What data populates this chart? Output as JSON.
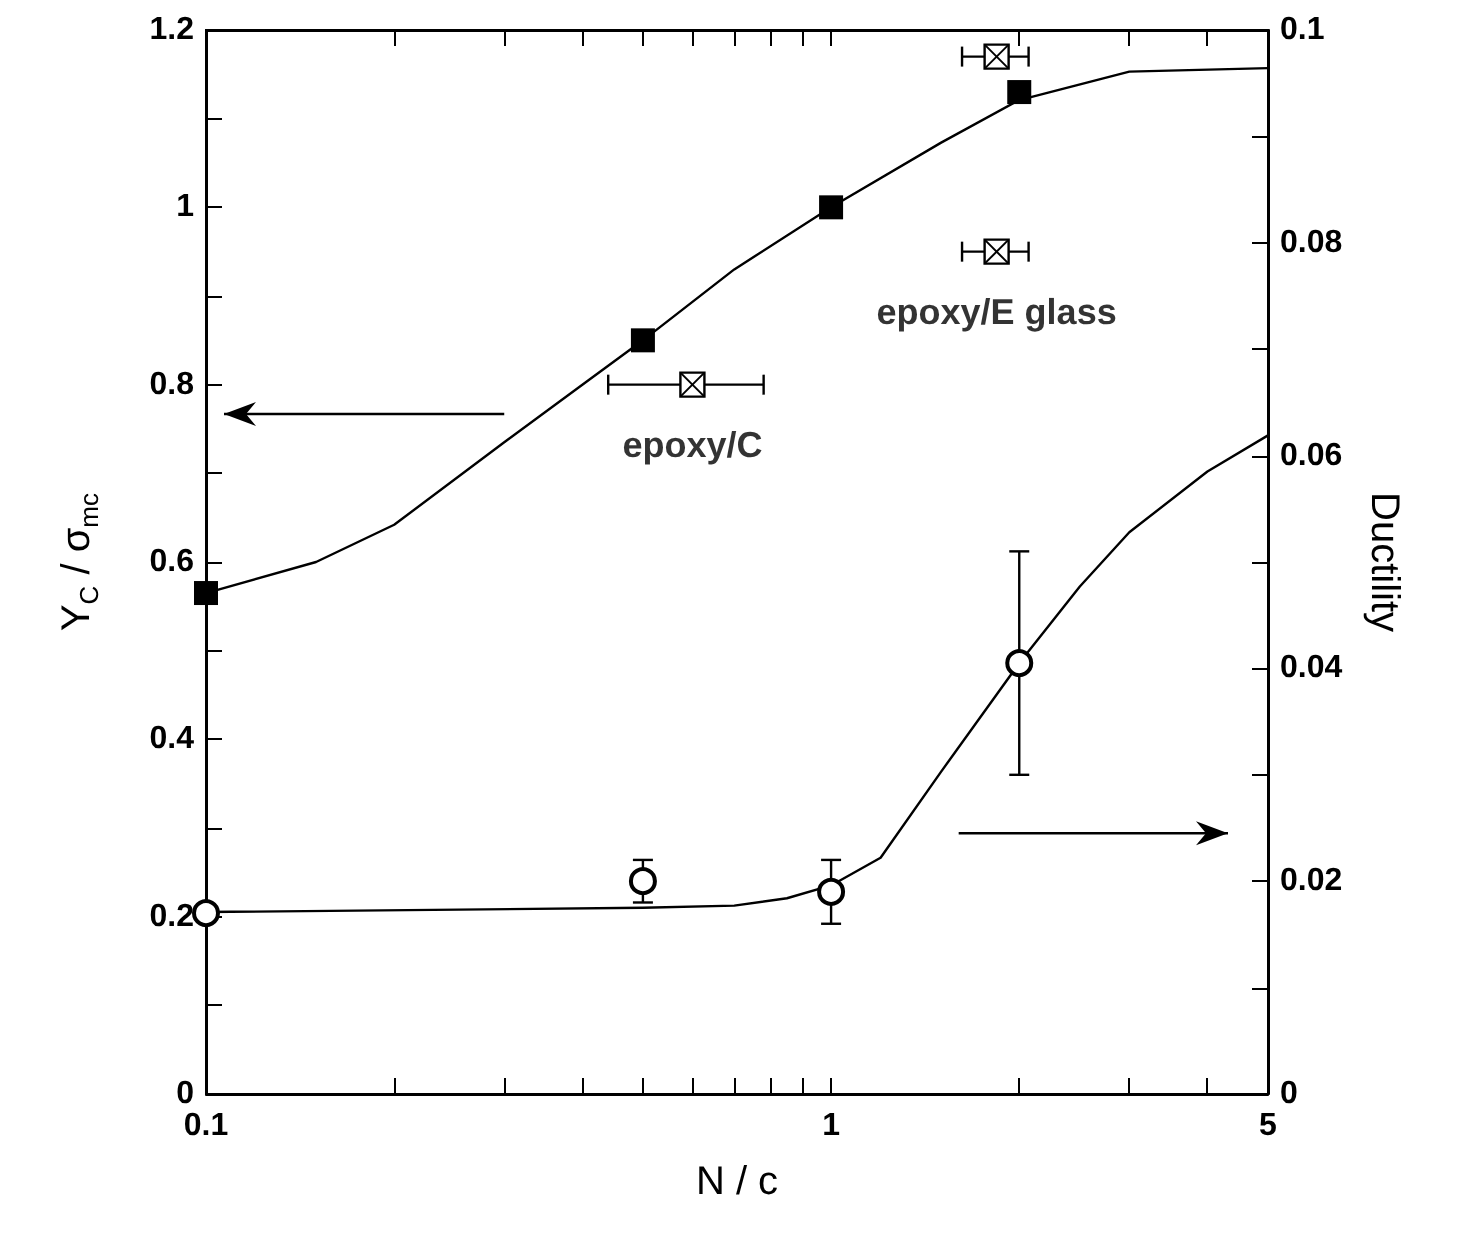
{
  "chart_data": {
    "type": "scatter",
    "xlabel": "N / c",
    "ylabel": "Y$_{C}$ / σ$_{mc}$",
    "y2label": "Ductility",
    "log": "x",
    "xlim": [
      0.1,
      5
    ],
    "xticks": [
      0.1,
      {
        "value": 0.2,
        "label": null
      },
      {
        "value": 0.3,
        "label": null
      },
      {
        "value": 0.4,
        "label": null
      },
      {
        "value": 0.5,
        "label": null
      },
      {
        "value": 0.6,
        "label": null
      },
      {
        "value": 0.7,
        "label": null
      },
      {
        "value": 0.8,
        "label": null
      },
      {
        "value": 0.9,
        "label": null
      },
      1,
      {
        "value": 2,
        "label": null
      },
      {
        "value": 3,
        "label": null
      },
      {
        "value": 4,
        "label": null
      },
      5
    ],
    "ylim": [
      0,
      1.2
    ],
    "yticks": [
      0,
      0.2,
      0.4,
      0.6,
      0.8,
      1,
      1.2
    ],
    "y2lim": [
      0,
      0.1
    ],
    "y2ticks": [
      0,
      0.02,
      0.04,
      0.06,
      0.08,
      0.1
    ],
    "grid": false,
    "series": [
      {
        "marker": "square",
        "color": "#000000",
        "x": [
          0.1,
          0.5,
          1,
          2
        ],
        "values": [
          0.565,
          0.85,
          1.0,
          1.13
        ],
        "errors": [
          null,
          null,
          null,
          0.01
        ]
      },
      {
        "type": "line",
        "marker": "none",
        "color": "#000000",
        "x": [
          0.1,
          0.15,
          0.2,
          0.3,
          0.4,
          0.5,
          0.7,
          1,
          1.5,
          2,
          3,
          5
        ],
        "values": [
          0.565,
          0.6,
          0.642,
          0.735,
          0.8,
          0.85,
          0.93,
          1.0,
          1.073,
          1.121,
          1.153,
          1.157
        ]
      },
      {
        "name": "epoxy/C",
        "marker": "square",
        "color": "#000000",
        "x": [
          0.6
        ],
        "values": [
          0.8
        ],
        "xerrors": [
          [
            0.44,
            0.78
          ]
        ]
      },
      {
        "name": "epoxy/E glass",
        "marker": "square",
        "color": "#000000",
        "x": [
          1.84,
          1.84
        ],
        "values": [
          1.17,
          0.95
        ],
        "xerrors": [
          [
            1.62,
            2.07
          ],
          [
            1.62,
            2.07
          ]
        ]
      },
      {
        "marker": "circle",
        "axis": "y2",
        "color": "#000000",
        "x": [
          0.1,
          0.5,
          1,
          2
        ],
        "values": [
          0.017,
          0.02,
          0.019,
          0.0405
        ],
        "errors": [
          null,
          0.002,
          0.003,
          [
            0.03,
            0.051
          ]
        ]
      },
      {
        "type": "line",
        "marker": "none",
        "axis": "y2",
        "color": "#000000",
        "x": [
          0.1,
          0.5,
          0.7,
          0.85,
          1,
          1.2,
          1.5,
          2,
          2.5,
          3,
          4,
          5
        ],
        "values": [
          0.0171,
          0.0175,
          0.0177,
          0.0184,
          0.0196,
          0.0222,
          0.0303,
          0.0405,
          0.0477,
          0.0528,
          0.0585,
          0.0619
        ]
      }
    ]
  }
}
